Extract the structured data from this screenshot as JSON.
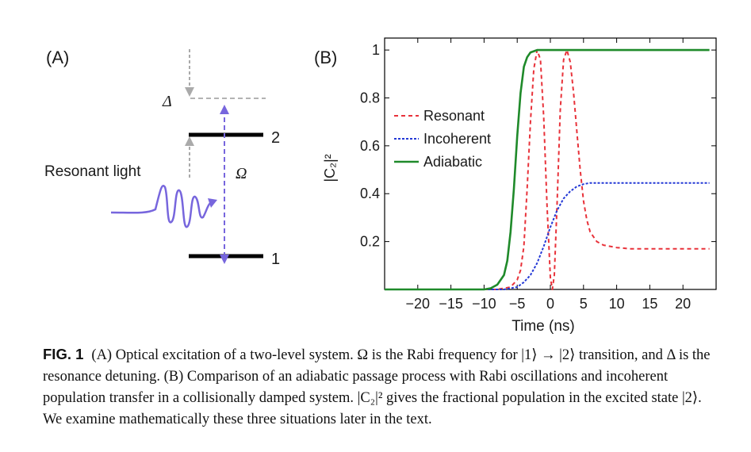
{
  "panel_a": {
    "label": "(A)",
    "delta_label": "Δ",
    "omega_label": "Ω",
    "level_upper": "2",
    "level_lower": "1",
    "light_label": "Resonant light"
  },
  "panel_b": {
    "label": "(B)"
  },
  "chart_data": {
    "type": "line",
    "xlabel": "Time (ns)",
    "ylabel": "|C₂|²",
    "xlim": [
      -25,
      25
    ],
    "ylim": [
      0,
      1.05
    ],
    "x_ticks": [
      -20,
      -15,
      -10,
      -5,
      0,
      5,
      10,
      15,
      20
    ],
    "x_tick_labels": [
      "−20",
      "−15",
      "−10",
      "−5",
      "0",
      "5",
      "10",
      "15",
      "20"
    ],
    "y_ticks": [
      0.2,
      0.4,
      0.6,
      0.8,
      1
    ],
    "y_tick_labels": [
      "0.2",
      "0.4",
      "0.6",
      "0.8",
      "1"
    ],
    "legend_position": "top-left",
    "series": [
      {
        "name": "Resonant",
        "color": "#e8323a",
        "style": "dashed",
        "x": [
          -25,
          -8,
          -6,
          -5,
          -4.5,
          -4,
          -3.5,
          -3,
          -2.5,
          -2,
          -1.5,
          -1,
          -0.5,
          0,
          0.3,
          0.6,
          1,
          1.5,
          2,
          2.5,
          3,
          3.5,
          4,
          4.5,
          5,
          5.5,
          6,
          7,
          8,
          10,
          12,
          15,
          18,
          20,
          24
        ],
        "values": [
          0,
          0,
          0.01,
          0.04,
          0.08,
          0.18,
          0.42,
          0.7,
          0.92,
          1.0,
          0.96,
          0.72,
          0.35,
          0.05,
          0,
          0.06,
          0.35,
          0.75,
          0.96,
          1.0,
          0.95,
          0.82,
          0.66,
          0.5,
          0.37,
          0.29,
          0.24,
          0.2,
          0.185,
          0.175,
          0.17,
          0.17,
          0.17,
          0.17,
          0.17
        ]
      },
      {
        "name": "Incoherent",
        "color": "#2338d6",
        "style": "dotted",
        "x": [
          -25,
          -7,
          -5,
          -4,
          -3,
          -2,
          -1,
          0,
          1,
          2,
          3,
          4,
          5,
          6,
          8,
          10,
          12,
          15,
          20,
          24
        ],
        "values": [
          0,
          0,
          0.01,
          0.03,
          0.06,
          0.11,
          0.18,
          0.26,
          0.33,
          0.38,
          0.41,
          0.43,
          0.44,
          0.445,
          0.445,
          0.445,
          0.445,
          0.445,
          0.445,
          0.445
        ]
      },
      {
        "name": "Adiabatic",
        "color": "#1f8a2a",
        "style": "solid",
        "x": [
          -25,
          -10,
          -9,
          -8,
          -7,
          -6.5,
          -6,
          -5.5,
          -5,
          -4.5,
          -4,
          -3.5,
          -3,
          -2.5,
          -2,
          -1,
          0,
          5,
          10,
          15,
          20,
          24
        ],
        "values": [
          0,
          0,
          0.005,
          0.02,
          0.06,
          0.12,
          0.24,
          0.42,
          0.64,
          0.82,
          0.93,
          0.97,
          0.99,
          0.995,
          1.0,
          1.0,
          1.0,
          1.0,
          1.0,
          1.0,
          1.0,
          1.0
        ]
      }
    ]
  },
  "caption": {
    "fig_label": "FIG. 1",
    "text": "(A) Optical excitation of a two-level system. Ω is the Rabi frequency for |1⟩ → |2⟩ transition, and Δ is the resonance detuning. (B) Comparison of an adiabatic passage process with Rabi oscillations and incoherent population transfer in a collisionally damped system. |C₂|² gives the fractional population in the excited state |2⟩. We examine mathematically these three situations later in the text."
  }
}
